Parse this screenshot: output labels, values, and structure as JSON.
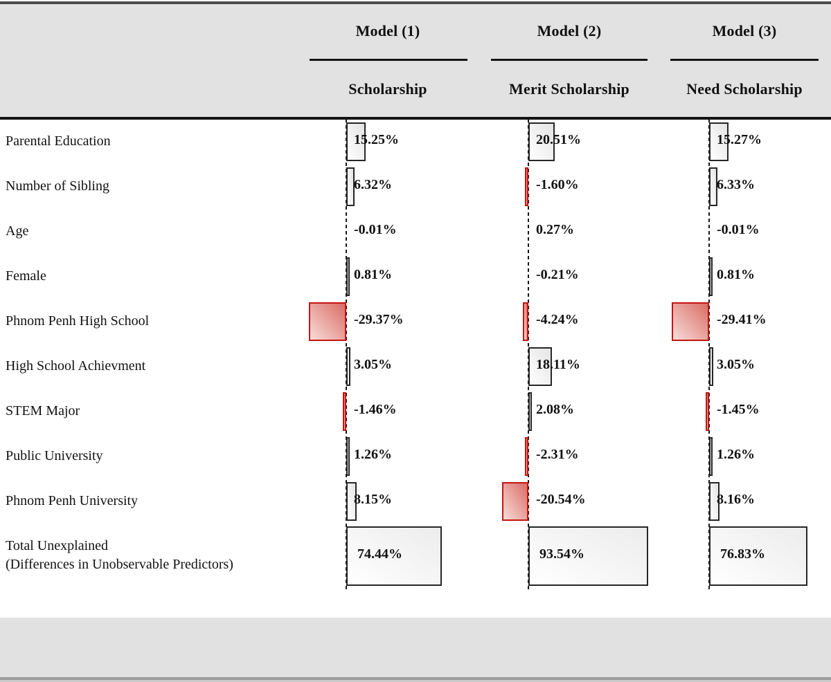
{
  "header": {
    "models": [
      {
        "model": "Model (1)",
        "outcome": "Scholarship"
      },
      {
        "model": "Model (2)",
        "outcome": "Merit Scholarship"
      },
      {
        "model": "Model (3)",
        "outcome": "Need Scholarship"
      }
    ]
  },
  "chart": {
    "rows": [
      {
        "label": "Parental Education",
        "values": [
          "15.25%",
          "20.51%",
          "15.27%"
        ]
      },
      {
        "label": "Number of Sibling",
        "values": [
          "6.32%",
          "-1.60%",
          "6.33%"
        ]
      },
      {
        "label": "Age",
        "values": [
          "-0.01%",
          "0.27%",
          "-0.01%"
        ]
      },
      {
        "label": "Female",
        "values": [
          "0.81%",
          "-0.21%",
          "0.81%"
        ]
      },
      {
        "label": "Phnom Penh High School",
        "values": [
          "-29.37%",
          "-4.24%",
          "-29.41%"
        ]
      },
      {
        "label": "High School Achievment",
        "values": [
          "3.05%",
          "18.11%",
          "3.05%"
        ]
      },
      {
        "label": "STEM Major",
        "values": [
          "-1.46%",
          "2.08%",
          "-1.45%"
        ]
      },
      {
        "label": "Public University",
        "values": [
          "1.26%",
          "-2.31%",
          "1.26%"
        ]
      },
      {
        "label": "Phnom Penh University",
        "values": [
          "8.15%",
          "-20.54%",
          "8.16%"
        ]
      },
      {
        "label": "Total Unexplained",
        "label2": "(Differences in Unobservable Predictors)",
        "values": [
          "74.44%",
          "93.54%",
          "76.83%"
        ],
        "total": true
      }
    ]
  },
  "chart_data": {
    "type": "bar",
    "orientation": "horizontal",
    "title": "",
    "xlabel": "",
    "ylabel": "",
    "value_format": "percent",
    "zero_axis": "dashed",
    "legend_position": "none",
    "categories": [
      "Parental Education",
      "Number of Sibling",
      "Age",
      "Female",
      "Phnom Penh High School",
      "High School Achievment",
      "STEM Major",
      "Public University",
      "Phnom Penh University",
      "Total Unexplained (Differences in Unobservable Predictors)"
    ],
    "series": [
      {
        "name": "Model (1) Scholarship",
        "values": [
          15.25,
          6.32,
          -0.01,
          0.81,
          -29.37,
          3.05,
          -1.46,
          1.26,
          8.15,
          74.44
        ]
      },
      {
        "name": "Model (2) Merit Scholarship",
        "values": [
          20.51,
          -1.6,
          0.27,
          -0.21,
          -4.24,
          18.11,
          2.08,
          -2.31,
          -20.54,
          93.54
        ]
      },
      {
        "name": "Model (3) Need Scholarship",
        "values": [
          15.27,
          6.33,
          -0.01,
          0.81,
          -29.41,
          3.05,
          -1.45,
          1.26,
          8.16,
          76.83
        ]
      }
    ],
    "xlim": [
      -35,
      100
    ]
  },
  "colors": {
    "header_band": "#e2e2e2",
    "bottom_band": "#e1e1e1",
    "positive_bar_border": "#262626",
    "positive_bar_fill": "#f2f2f2",
    "negative_bar_border": "#c41511",
    "negative_bar_fill": "#eeb0a9",
    "axis_dash": "#161616"
  }
}
